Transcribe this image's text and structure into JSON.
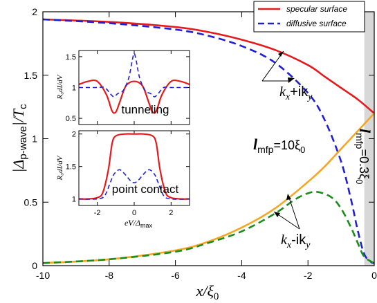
{
  "colors": {
    "specular": "#e41a1c",
    "diffusive": "#1f1fd6",
    "minus_solid": "#f5a623",
    "minus_dashed": "#1a8c1a",
    "shade": "#d8d8d8"
  },
  "main_labels": {
    "y_prefix": "|Δ",
    "y_sub": "p-wave",
    "y_suffix": "|/T",
    "y_sub2": "c",
    "x_main": "x/ξ",
    "x_sub": "0"
  },
  "legend": [
    {
      "label": "specular surface",
      "style": "solid"
    },
    {
      "label": "diffusive surface",
      "style": "dashed"
    }
  ],
  "annotations": {
    "plus": "k",
    "plus_sub1": "x",
    "plus_mid": "+ik",
    "plus_sub2": "y",
    "minus": "k",
    "minus_sub1": "x",
    "minus_mid": "-ik",
    "minus_sub2": "y",
    "lmfp_long": "l",
    "lmfp_long_sub": "mfp",
    "lmfp_long_val": "=10ξ",
    "lmfp_long_val_sub": "0",
    "lmfp_short": "l",
    "lmfp_short_sub": "mfp",
    "lmfp_short_val": "=0.3ξ",
    "lmfp_short_val_sub": "0"
  },
  "inset_labels": {
    "top_title": "tunneling",
    "bottom_title": "point contact",
    "ylabel_top": "R₀dI/dV",
    "ylabel_bottom": "R₀dI/dV",
    "xlabel": "eV/Δ",
    "xlabel_sub": "max"
  },
  "chart_data": [
    {
      "type": "line",
      "xlabel": "x/ξ0",
      "ylabel": "|Δp-wave|/Tc",
      "xlim": [
        -10,
        0
      ],
      "ylim": [
        0,
        2
      ],
      "xticks": [
        -10,
        -8,
        -6,
        -4,
        -2,
        0
      ],
      "yticks": [
        0,
        0.5,
        1,
        1.5,
        2
      ],
      "shaded_region": [
        -0.3,
        0
      ],
      "series": [
        {
          "name": "specular surface",
          "x": [
            -10,
            -8,
            -6,
            -5,
            -4,
            -3,
            -2,
            -1.5,
            -1,
            -0.5,
            0
          ],
          "y": [
            1.94,
            1.92,
            1.88,
            1.84,
            1.78,
            1.7,
            1.58,
            1.49,
            1.4,
            1.31,
            1.2
          ]
        },
        {
          "name": "diffusive surface",
          "x": [
            -10,
            -8,
            -6,
            -5,
            -4,
            -3,
            -2,
            -1.5,
            -1,
            -0.7,
            -0.5,
            -0.3,
            -0.1,
            0
          ],
          "y": [
            1.94,
            1.91,
            1.86,
            1.81,
            1.73,
            1.6,
            1.36,
            1.15,
            0.82,
            0.52,
            0.28,
            0.09,
            0.03,
            0.02
          ]
        },
        {
          "name": "specular surface",
          "x": [
            -10,
            -8,
            -6,
            -5,
            -4,
            -3,
            -2,
            -1.5,
            -1,
            -0.5,
            0
          ],
          "y": [
            0.02,
            0.05,
            0.12,
            0.19,
            0.3,
            0.45,
            0.66,
            0.78,
            0.92,
            1.06,
            1.2
          ]
        },
        {
          "name": "diffusive surface",
          "x": [
            -10,
            -8,
            -6,
            -5,
            -4,
            -3,
            -2.4,
            -2,
            -1.7,
            -1.3,
            -1,
            -0.7,
            -0.5,
            -0.3,
            0
          ],
          "y": [
            0.02,
            0.05,
            0.11,
            0.18,
            0.27,
            0.41,
            0.52,
            0.57,
            0.58,
            0.54,
            0.45,
            0.3,
            0.18,
            0.07,
            0.02
          ]
        }
      ]
    },
    {
      "type": "line",
      "title": "tunneling",
      "xlim": [
        -3,
        3
      ],
      "ylim": [
        0.4,
        1.6
      ],
      "xticks": [
        -2,
        0,
        2
      ],
      "yticks": [
        0.5,
        1,
        1.5
      ],
      "series": [
        {
          "name": "specular surface",
          "x": [
            -3,
            -2.5,
            -2,
            -1.5,
            -1.2,
            -1,
            -0.8,
            -0.5,
            -0.25,
            0,
            0.25,
            0.5,
            0.8,
            1,
            1.2,
            1.5,
            2,
            2.5,
            3
          ],
          "y": [
            1.05,
            1.1,
            1.1,
            0.88,
            0.62,
            0.6,
            0.75,
            1.0,
            1.08,
            1.1,
            1.08,
            1.0,
            0.75,
            0.6,
            0.62,
            0.88,
            1.1,
            1.1,
            1.05
          ]
        },
        {
          "name": "diffusive surface",
          "x": [
            -3,
            -2,
            -1.6,
            -1.3,
            -1.1,
            -0.9,
            -0.6,
            -0.3,
            -0.1,
            0,
            0.1,
            0.3,
            0.6,
            0.9,
            1.1,
            1.3,
            1.6,
            2,
            3
          ],
          "y": [
            1.0,
            1.0,
            1.0,
            0.9,
            0.85,
            0.9,
            0.95,
            1.15,
            1.45,
            1.55,
            1.45,
            1.15,
            0.95,
            0.9,
            0.85,
            0.9,
            1.0,
            1.0,
            1.0
          ]
        }
      ]
    },
    {
      "type": "line",
      "title": "point contact",
      "xlabel": "eV/Δmax",
      "xlim": [
        -3,
        3
      ],
      "ylim": [
        0.9,
        2.05
      ],
      "xticks": [
        -2,
        0,
        2
      ],
      "yticks": [
        1,
        1.5,
        2
      ],
      "series": [
        {
          "name": "specular surface",
          "x": [
            -3,
            -2.5,
            -2,
            -1.7,
            -1.4,
            -1.2,
            -1,
            -0.5,
            0,
            0.5,
            1,
            1.2,
            1.4,
            1.7,
            2,
            2.5,
            3
          ],
          "y": [
            1.0,
            1.0,
            1.02,
            1.1,
            1.45,
            1.85,
            1.97,
            2.0,
            2.0,
            2.0,
            1.97,
            1.85,
            1.45,
            1.1,
            1.02,
            1.0,
            1.0
          ]
        },
        {
          "name": "diffusive surface",
          "x": [
            -3,
            -2,
            -1.6,
            -1.3,
            -1.1,
            -0.8,
            -0.5,
            -0.2,
            0,
            0.2,
            0.5,
            0.8,
            1.1,
            1.3,
            1.6,
            2,
            3
          ],
          "y": [
            1.0,
            1.0,
            1.05,
            1.25,
            1.38,
            1.45,
            1.38,
            1.28,
            1.25,
            1.28,
            1.38,
            1.45,
            1.38,
            1.25,
            1.05,
            1.0,
            1.0
          ]
        }
      ]
    }
  ]
}
